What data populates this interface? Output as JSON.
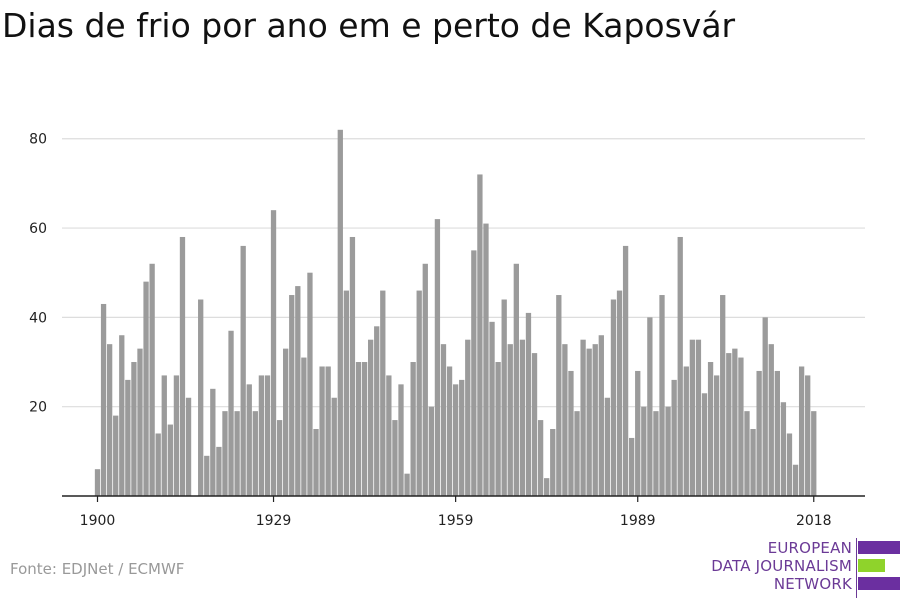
{
  "title": "Dias de frio por ano em e perto de Kaposvár",
  "source": "Fonte: EDJNet / ECMWF",
  "logo": {
    "lines": [
      "EUROPEAN",
      "DATA JOURNALISM",
      "NETWORK"
    ],
    "colors": [
      "#6b2fa0",
      "#8fd32b",
      "#6b2fa0"
    ]
  },
  "colors": {
    "bar": "#9b9b9b",
    "grid": "#dddddd",
    "axis": "#222222",
    "text": "#222222"
  },
  "chart_data": {
    "type": "bar",
    "title": "Dias de frio por ano em e perto de Kaposvár",
    "xlabel": "",
    "ylabel": "",
    "x_tick_labels": [
      "1900",
      "1929",
      "1959",
      "1989",
      "2018"
    ],
    "y_ticks": [
      20,
      40,
      60,
      80
    ],
    "ylim": [
      0,
      88
    ],
    "grid": true,
    "categories": [
      1900,
      1901,
      1902,
      1903,
      1904,
      1905,
      1906,
      1907,
      1908,
      1909,
      1910,
      1911,
      1912,
      1913,
      1914,
      1915,
      1916,
      1917,
      1918,
      1919,
      1920,
      1921,
      1922,
      1923,
      1924,
      1925,
      1926,
      1927,
      1928,
      1929,
      1930,
      1931,
      1932,
      1933,
      1934,
      1935,
      1936,
      1937,
      1938,
      1939,
      1940,
      1941,
      1942,
      1943,
      1944,
      1945,
      1946,
      1947,
      1948,
      1949,
      1950,
      1951,
      1952,
      1953,
      1954,
      1955,
      1956,
      1957,
      1958,
      1959,
      1960,
      1961,
      1962,
      1963,
      1964,
      1965,
      1966,
      1967,
      1968,
      1969,
      1970,
      1971,
      1972,
      1973,
      1974,
      1975,
      1976,
      1977,
      1978,
      1979,
      1980,
      1981,
      1982,
      1983,
      1984,
      1985,
      1986,
      1987,
      1988,
      1989,
      1990,
      1991,
      1992,
      1993,
      1994,
      1995,
      1996,
      1997,
      1998,
      1999,
      2000,
      2001,
      2002,
      2003,
      2004,
      2005,
      2006,
      2007,
      2008,
      2009,
      2010,
      2011,
      2012,
      2013,
      2014,
      2015,
      2016,
      2017,
      2018
    ],
    "values": [
      6,
      43,
      34,
      18,
      36,
      26,
      30,
      33,
      48,
      52,
      14,
      27,
      16,
      27,
      58,
      22,
      0,
      44,
      9,
      24,
      11,
      19,
      37,
      19,
      56,
      25,
      19,
      27,
      27,
      64,
      17,
      33,
      45,
      47,
      31,
      50,
      15,
      29,
      29,
      22,
      82,
      46,
      58,
      30,
      30,
      35,
      38,
      46,
      27,
      17,
      25,
      5,
      30,
      46,
      52,
      20,
      62,
      34,
      29,
      25,
      26,
      35,
      55,
      72,
      61,
      39,
      30,
      44,
      34,
      52,
      35,
      41,
      32,
      17,
      4,
      15,
      45,
      34,
      28,
      19,
      35,
      33,
      34,
      36,
      22,
      44,
      46,
      56,
      13,
      28,
      20,
      40,
      19,
      45,
      20,
      26,
      58,
      29,
      35,
      35,
      23,
      30,
      27,
      45,
      32,
      33,
      31,
      19,
      15,
      28,
      40,
      34,
      28,
      21,
      14,
      7,
      29,
      27,
      19
    ]
  }
}
